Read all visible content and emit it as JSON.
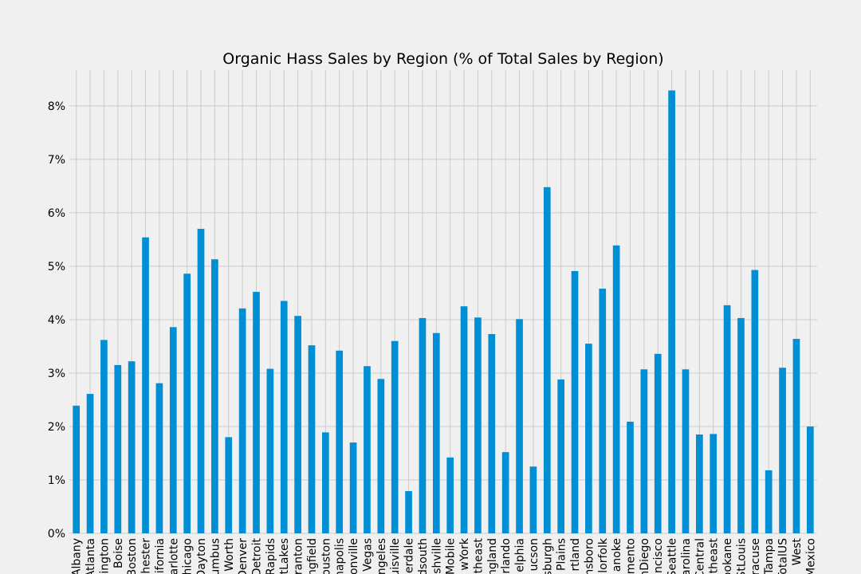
{
  "chart_data": {
    "type": "bar",
    "title": "Organic Hass Sales by Region (% of Total Sales by Region)",
    "xlabel": "",
    "ylabel": "",
    "ylim": [
      0,
      8.67
    ],
    "yticks": [
      0,
      1,
      2,
      3,
      4,
      5,
      6,
      7,
      8
    ],
    "ytick_labels": [
      "0%",
      "1%",
      "2%",
      "3%",
      "4%",
      "5%",
      "6%",
      "7%",
      "8%"
    ],
    "grid": true,
    "bar_color": "#008fd5",
    "background": "#f0f0f0",
    "categories": [
      "Albany",
      "Atlanta",
      "BaltimoreWashington",
      "Boise",
      "Boston",
      "BuffaloRochester",
      "California",
      "Charlotte",
      "Chicago",
      "CincinnatiDayton",
      "Columbus",
      "DallasFtWorth",
      "Denver",
      "Detroit",
      "GrandRapids",
      "GreatLakes",
      "HarrisburgScranton",
      "HartfordSpringfield",
      "Houston",
      "Indianapolis",
      "Jacksonville",
      "LasVegas",
      "LosAngeles",
      "Louisville",
      "MiamiFtLauderdale",
      "Midsouth",
      "Nashville",
      "NewOrleansMobile",
      "NewYork",
      "Northeast",
      "NorthernNewEngland",
      "Orlando",
      "Philadelphia",
      "PhoenixTucson",
      "Pittsburgh",
      "Plains",
      "Portland",
      "RaleighGreensboro",
      "RichmondNorfolk",
      "Roanoke",
      "Sacramento",
      "SanDiego",
      "SanFrancisco",
      "Seattle",
      "SouthCarolina",
      "SouthCentral",
      "Southeast",
      "Spokane",
      "StLouis",
      "Syracuse",
      "Tampa",
      "TotalUS",
      "West",
      "WestTexNewMexico"
    ],
    "tick_labels": [
      "Albany",
      "Atlanta",
      "ington",
      "Boise",
      "Boston",
      "hester",
      "ifornia",
      "arlotte",
      "hicago",
      "Dayton",
      "umbus",
      "Worth",
      "Denver",
      "Detroit",
      "Rapids",
      "tLakes",
      "ranton",
      "ngfield",
      "ouston",
      "napolis",
      "onville",
      "Vegas",
      "ngeles",
      "uisville",
      "erdale",
      "dsouth",
      "shville",
      "Mobile",
      "wYork",
      "theast",
      "ngland",
      "rlando",
      "elphia",
      "ucson",
      "sburgh",
      "Plains",
      "rtland",
      "nsboro",
      "lorfolk",
      "anoke",
      "mento",
      "nDiego",
      "ncisco",
      "Seattle",
      "arolina",
      "Central",
      "theast",
      "ookane",
      "StLouis",
      "racuse",
      "Tampa",
      "TotalUS",
      "West",
      "Mexico"
    ],
    "values": [
      2.39,
      2.61,
      3.62,
      3.15,
      3.22,
      5.54,
      2.81,
      3.86,
      4.86,
      5.7,
      5.13,
      1.8,
      4.21,
      4.52,
      3.08,
      4.35,
      4.07,
      3.52,
      1.89,
      3.42,
      1.7,
      3.13,
      2.89,
      3.6,
      0.79,
      4.03,
      3.75,
      1.42,
      4.25,
      4.04,
      3.73,
      1.52,
      4.01,
      1.25,
      6.48,
      2.88,
      4.91,
      3.55,
      4.58,
      5.39,
      2.09,
      3.07,
      3.36,
      8.29,
      3.07,
      1.85,
      1.86,
      4.27,
      4.03,
      4.93,
      1.18,
      3.1,
      3.64,
      2.0
    ]
  }
}
